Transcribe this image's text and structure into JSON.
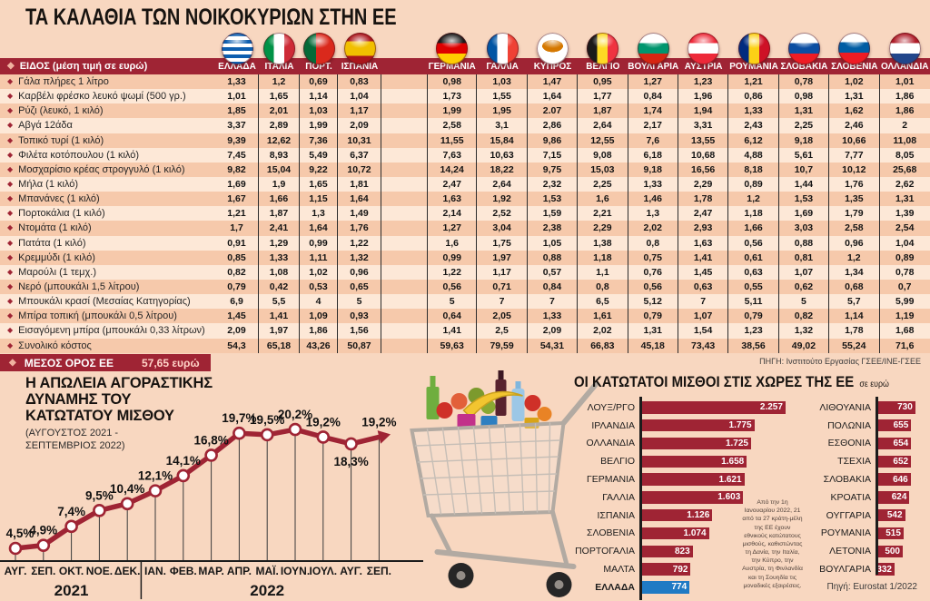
{
  "colors": {
    "background": "#f8d7c0",
    "maroon": "#9f2434",
    "row_dark": "#f6c9ab",
    "row_light": "#fde8d7",
    "greece_blue": "#1f7ac4",
    "ink": "#171310"
  },
  "header": {
    "title": "ΤΑ ΚΑΛΑΘΙΑ ΤΩΝ ΝΟΙΚΟΚΥΡΙΩΝ ΣΤΗΝ ΕΕ"
  },
  "price_table": {
    "header_label": "ΕΙΔΟΣ (μέση τιμή σε ευρώ)",
    "countries": [
      {
        "name": "ΕΛΛΑΔΑ",
        "flag": "greece"
      },
      {
        "name": "ΙΤΑΛΙΑ",
        "flag": "italy"
      },
      {
        "name": "ΠΟΡΤ.",
        "flag": "portugal"
      },
      {
        "name": "ΙΣΠΑΝΙΑ",
        "flag": "spain"
      },
      {
        "name": "ΓΕΡΜΑΝΙΑ",
        "flag": "germany"
      },
      {
        "name": "ΓΑΛΛΙΑ",
        "flag": "france"
      },
      {
        "name": "ΚΥΠΡΟΣ",
        "flag": "cyprus"
      },
      {
        "name": "ΒΕΛΓΙΟ",
        "flag": "belgium"
      },
      {
        "name": "ΒΟΥΛΓΑΡΙΑ",
        "flag": "bulgaria"
      },
      {
        "name": "ΑΥΣΤΡΙΑ",
        "flag": "austria"
      },
      {
        "name": "ΡΟΥΜΑΝΙΑ",
        "flag": "romania"
      },
      {
        "name": "ΣΛΟΒΑΚΙΑ",
        "flag": "slovakia"
      },
      {
        "name": "ΣΛΟΒΕΝΙΑ",
        "flag": "slovenia"
      },
      {
        "name": "ΟΛΛΑΝΔΙΑ",
        "flag": "netherlands"
      }
    ],
    "rows": [
      {
        "label": "Γάλα  πλήρες 1 λίτρο",
        "values": [
          "1,33",
          "1,2",
          "0,69",
          "0,83",
          "0,98",
          "1,03",
          "1,47",
          "0,95",
          "1,27",
          "1,23",
          "1,21",
          "0,78",
          "1,02",
          "1,01"
        ]
      },
      {
        "label": "Καρβέλι φρέσκο λευκό ψωμί (500 γρ.)",
        "values": [
          "1,01",
          "1,65",
          "1,14",
          "1,04",
          "1,73",
          "1,55",
          "1,64",
          "1,77",
          "0,84",
          "1,96",
          "0,86",
          "0,98",
          "1,31",
          "1,86"
        ]
      },
      {
        "label": "Ρύζι (λευκό, 1 κιλό)",
        "values": [
          "1,85",
          "2,01",
          "1,03",
          "1,17",
          "1,99",
          "1,95",
          "2.07",
          "1,87",
          "1,74",
          "1,94",
          "1,33",
          "1,31",
          "1,62",
          "1,86"
        ]
      },
      {
        "label": "Αβγά 12άδα",
        "values": [
          "3,37",
          "2,89",
          "1,99",
          "2,09",
          "2,58",
          "3,1",
          "2,86",
          "2,64",
          "2,17",
          "3,31",
          "2,43",
          "2,25",
          "2,46",
          "2"
        ]
      },
      {
        "label": "Τοπικό τυρί (1 κιλό)",
        "values": [
          "9,39",
          "12,62",
          "7,36",
          "10,31",
          "11,55",
          "15,84",
          "9,86",
          "12,55",
          "7,6",
          "13,55",
          "6,12",
          "9,18",
          "10,66",
          "11,08"
        ]
      },
      {
        "label": "Φιλέτα κοτόπουλου (1 κιλό)",
        "values": [
          "7,45",
          "8,93",
          "5,49",
          "6,37",
          "7,63",
          "10,63",
          "7,15",
          "9,08",
          "6,18",
          "10,68",
          "4,88",
          "5,61",
          "7,77",
          "8,05"
        ]
      },
      {
        "label": "Μοσχαρίσιο κρέας στρογγυλό (1 κιλό)",
        "values": [
          "9,82",
          "15,04",
          "9,22",
          "10,72",
          "14,24",
          "18,22",
          "9,75",
          "15,03",
          "9,18",
          "16,56",
          "8,18",
          "10,7",
          "10,12",
          "25,68"
        ]
      },
      {
        "label": "Μήλα (1 κιλό)",
        "values": [
          "1,69",
          "1,9",
          "1,65",
          "1,81",
          "2,47",
          "2,64",
          "2,32",
          "2,25",
          "1,33",
          "2,29",
          "0,89",
          "1,44",
          "1,76",
          "2,62"
        ]
      },
      {
        "label": "Μπανάνες (1 κιλό)",
        "values": [
          "1,67",
          "1,66",
          "1,15",
          "1,64",
          "1,63",
          "1,92",
          "1,53",
          "1,6",
          "1,46",
          "1,78",
          "1,2",
          "1,53",
          "1,35",
          "1,31"
        ]
      },
      {
        "label": "Πορτοκάλια (1 κιλό)",
        "values": [
          "1,21",
          "1,87",
          "1,3",
          "1,49",
          "2,14",
          "2,52",
          "1,59",
          "2,21",
          "1,3",
          "2,47",
          "1,18",
          "1,69",
          "1,79",
          "1,39"
        ]
      },
      {
        "label": "Ντομάτα (1 κιλό)",
        "values": [
          "1,7",
          "2,41",
          "1,64",
          "1,76",
          "1,27",
          "3,04",
          "2,38",
          "2,29",
          "2,02",
          "2,93",
          "1,66",
          "3,03",
          "2,58",
          "2,54"
        ]
      },
      {
        "label": "Πατάτα (1 κιλό)",
        "values": [
          "0,91",
          "1,29",
          "0,99",
          "1,22",
          "1,6",
          "1,75",
          "1,05",
          "1,38",
          "0,8",
          "1,63",
          "0,56",
          "0,88",
          "0,96",
          "1,04"
        ]
      },
      {
        "label": "Κρεμμύδι (1 κιλό)",
        "values": [
          "0,85",
          "1,33",
          "1,11",
          "1,32",
          "0,99",
          "1,97",
          "0,88",
          "1,18",
          "0,75",
          "1,41",
          "0,61",
          "0,81",
          "1,2",
          "0,89"
        ]
      },
      {
        "label": "Μαρούλι (1 τεμχ.)",
        "values": [
          "0,82",
          "1,08",
          "1,02",
          "0,96",
          "1,22",
          "1,17",
          "0,57",
          "1,1",
          "0,76",
          "1,45",
          "0,63",
          "1,07",
          "1,34",
          "0,78"
        ]
      },
      {
        "label": "Νερό (μπουκάλι 1,5 λίτρου)",
        "values": [
          "0,79",
          "0,42",
          "0,53",
          "0,65",
          "0,56",
          "0,71",
          "0,84",
          "0,8",
          "0,56",
          "0,63",
          "0,55",
          "0,62",
          "0,68",
          "0,7"
        ]
      },
      {
        "label": "Μπουκάλι κρασί (Μεσαίας Κατηγορίας)",
        "values": [
          "6,9",
          "5,5",
          "4",
          "5",
          "5",
          "7",
          "7",
          "6,5",
          "5,12",
          "7",
          "5,11",
          "5",
          "5,7",
          "5,99"
        ]
      },
      {
        "label": "Μπίρα  τοπική  (μπουκάλι 0,5 λίτρου)",
        "values": [
          "1,45",
          "1,41",
          "1,09",
          "0,93",
          "0,64",
          "2,05",
          "1,33",
          "1,61",
          "0,79",
          "1,07",
          "0,79",
          "0,82",
          "1,14",
          "1,19"
        ]
      },
      {
        "label": "Εισαγόμενη μπίρα (μπουκάλι 0,33 λίτρων)",
        "values": [
          "2,09",
          "1,97",
          "1,86",
          "1,56",
          "1,41",
          "2,5",
          "2,09",
          "2,02",
          "1,31",
          "1,54",
          "1,23",
          "1,32",
          "1,78",
          "1,68"
        ]
      },
      {
        "label": "Συνολικό κόστος",
        "values": [
          "54,3",
          "65,18",
          "43,26",
          "50,87",
          "59,63",
          "79,59",
          "54,31",
          "66,83",
          "45,18",
          "73,43",
          "38,56",
          "49,02",
          "55,24",
          "71,6"
        ]
      }
    ],
    "average": {
      "label": "ΜΕΣΟΣ ΟΡΟΣ ΕΕ",
      "value": "57,65 ευρώ"
    },
    "source": "ΠΗΓΗ: Ινστιτούτο Εργασίας ΓΣΕΕ/ΙΝΕ-ΓΣΕΕ"
  },
  "chart_data": [
    {
      "type": "line",
      "title": "Η ΑΠΩΛΕΙΑ ΑΓΟΡΑΣΤΙΚΗΣ ΔΥΝΑΜΗΣ ΤΟΥ ΚΑΤΩΤΑΤΟΥ ΜΙΣΘΟΥ",
      "title_lines": [
        "Η ΑΠΩΛΕΙΑ ΑΓΟΡΑΣΤΙΚΗΣ",
        "ΔΥΝΑΜΗΣ ΤΟΥ",
        "ΚΑΤΩΤΑΤΟΥ ΜΙΣΘΟΥ"
      ],
      "subtitle": "(ΑΥΓΟΥΣΤΟΣ 2021 - ΣΕΠΤΕΜΒΡΙΟΣ 2022)",
      "subtitle_lines": [
        "(ΑΥΓΟΥΣΤΟΣ 2021 -",
        "ΣΕΠΤΕΜΒΡΙΟΣ 2022)"
      ],
      "x": [
        "ΑΥΓ.",
        "ΣΕΠ.",
        "ΟΚΤ.",
        "ΝΟΕ.",
        "ΔΕΚ.",
        "ΙΑΝ.",
        "ΦΕΒ.",
        "ΜΑΡ.",
        "ΑΠΡ.",
        "ΜΑΪ.",
        "ΙΟΥΝ.",
        "ΙΟΥΛ.",
        "ΑΥΓ.",
        "ΣΕΠ."
      ],
      "year_groups": [
        {
          "label": "2021",
          "span": 5
        },
        {
          "label": "2022",
          "span": 9
        }
      ],
      "values": [
        4.5,
        4.9,
        7.4,
        9.5,
        10.4,
        12.1,
        14.1,
        16.8,
        19.7,
        19.5,
        20.2,
        19.2,
        18.3,
        19.2
      ],
      "labels": [
        "4,5%",
        "4,9%",
        "7,4%",
        "9,5%",
        "10,4%",
        "12,1%",
        "14,1%",
        "16,8%",
        "19,7%",
        "19,5%",
        "20,2%",
        "19,2%",
        "18,3%",
        "19,2%"
      ],
      "unit": "%",
      "grid": false,
      "ylim": [
        0,
        22
      ]
    },
    {
      "type": "bar",
      "orientation": "horizontal",
      "title": "ΟΙ ΚΑΤΩΤΑΤΟΙ ΜΙΣΘΟΙ ΣΤΙΣ ΧΩΡΕΣ ΤΗΣ ΕΕ",
      "unit_label": "σε ευρώ",
      "highlight": "ΕΛΛΑΔΑ",
      "columns": [
        {
          "bars": [
            {
              "label": "ΛΟΥΞ/ΡΓΟ",
              "value": 2257,
              "display": "2.257"
            },
            {
              "label": "ΙΡΛΑΝΔΙΑ",
              "value": 1775,
              "display": "1.775"
            },
            {
              "label": "ΟΛΛΑΝΔΙΑ",
              "value": 1725,
              "display": "1.725"
            },
            {
              "label": "ΒΕΛΓΙΟ",
              "value": 1658,
              "display": "1.658"
            },
            {
              "label": "ΓΕΡΜΑΝΙΑ",
              "value": 1621,
              "display": "1.621"
            },
            {
              "label": "ΓΑΛΛΙΑ",
              "value": 1603,
              "display": "1.603"
            },
            {
              "label": "ΙΣΠΑΝΙΑ",
              "value": 1126,
              "display": "1.126"
            },
            {
              "label": "ΣΛΟΒΕΝΙΑ",
              "value": 1074,
              "display": "1.074"
            },
            {
              "label": "ΠΟΡΤΟΓΑΛΙΑ",
              "value": 823,
              "display": "823"
            },
            {
              "label": "ΜΑΛΤΑ",
              "value": 792,
              "display": "792"
            },
            {
              "label": "ΕΛΛΑΔΑ",
              "value": 774,
              "display": "774"
            }
          ]
        },
        {
          "bars": [
            {
              "label": "ΛΙΘΟΥΑΝΙΑ",
              "value": 730,
              "display": "730"
            },
            {
              "label": "ΠΟΛΩΝΙΑ",
              "value": 655,
              "display": "655"
            },
            {
              "label": "ΕΣΘΟΝΙΑ",
              "value": 654,
              "display": "654"
            },
            {
              "label": "ΤΣΕΧΙΑ",
              "value": 652,
              "display": "652"
            },
            {
              "label": "ΣΛΟΒΑΚΙΑ",
              "value": 646,
              "display": "646"
            },
            {
              "label": "ΚΡΟΑΤΙΑ",
              "value": 624,
              "display": "624"
            },
            {
              "label": "ΟΥΓΓΑΡΙΑ",
              "value": 542,
              "display": "542"
            },
            {
              "label": "ΡΟΥΜΑΝΙΑ",
              "value": 515,
              "display": "515"
            },
            {
              "label": "ΛΕΤΟΝΙΑ",
              "value": 500,
              "display": "500"
            },
            {
              "label": "ΒΟΥΛΓΑΡΙΑ",
              "value": 332,
              "display": "332"
            }
          ]
        }
      ],
      "annotation": "Από την 1η Ιανουαρίου 2022, 21 από τα 27 κράτη-μέλη της ΕΕ έχουν εθνικούς κατώτατους μισθούς, καθιστώντας τη Δανία, την Ιταλία, την Κύπρο, την Αυστρία, τη Φινλανδία και τη Σουηδία τις μοναδικές εξαιρέσεις.",
      "source": "Πηγή: Eurostat 1/2022"
    }
  ]
}
